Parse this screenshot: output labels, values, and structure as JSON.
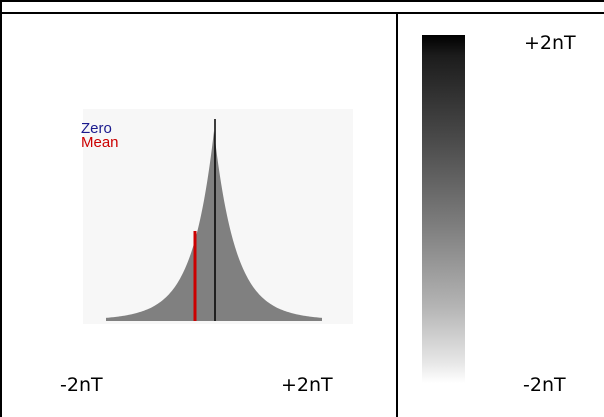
{
  "chart_data": {
    "type": "area",
    "title": "",
    "xlabel": "",
    "ylabel": "",
    "x_range": [
      "-2nT",
      "+2nT"
    ],
    "legend": [
      "Zero",
      "Mean"
    ],
    "markers": [
      {
        "name": "Zero",
        "x": 0,
        "color": "#1a1a8e"
      },
      {
        "name": "Mean",
        "x": -0.21,
        "color": "#cc0000"
      }
    ],
    "colorbar": {
      "max_label": "+2nT",
      "min_label": "-2nT",
      "colors": [
        "#000000",
        "#ffffff"
      ]
    }
  },
  "labels": {
    "x_min": "-2nT",
    "x_max": "+2nT",
    "colorbar_max": "+2nT",
    "colorbar_min": "-2nT",
    "legend_zero": "Zero",
    "legend_mean": "Mean"
  },
  "colors": {
    "histogram_fill": "#808080",
    "zero_line": "#000000",
    "mean_line": "#cc0000",
    "grid_border": "#000000"
  }
}
